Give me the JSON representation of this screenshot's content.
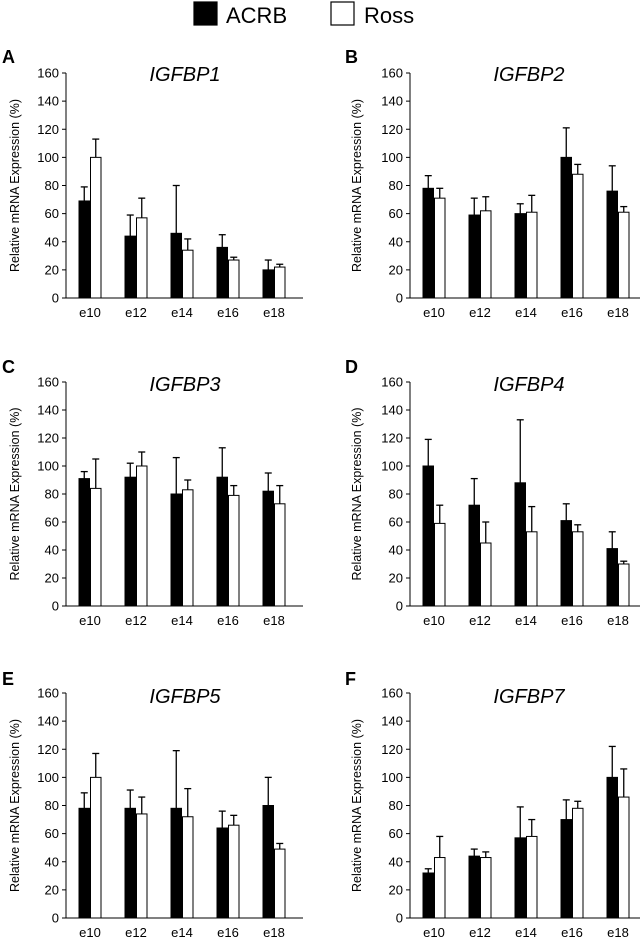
{
  "legend": [
    {
      "label": "ACRB",
      "color": "#000000"
    },
    {
      "label": "Ross",
      "color": "#ffffff"
    }
  ],
  "chart_data": [
    {
      "panel": "A",
      "type": "bar",
      "title": "IGFBP1",
      "ylabel": "Relative mRNA Expression (%)",
      "xlabel": "",
      "ylim": [
        0,
        160
      ],
      "yticks": [
        0,
        20,
        40,
        60,
        80,
        100,
        120,
        140,
        160
      ],
      "categories": [
        "e10",
        "e12",
        "e14",
        "e16",
        "e18"
      ],
      "series": [
        {
          "name": "ACRB",
          "values": [
            69,
            44,
            46,
            36,
            20
          ],
          "errors": [
            10,
            15,
            34,
            9,
            7
          ]
        },
        {
          "name": "Ross",
          "values": [
            100,
            57,
            34,
            27,
            22
          ],
          "errors": [
            13,
            14,
            8,
            2,
            2
          ]
        }
      ]
    },
    {
      "panel": "B",
      "type": "bar",
      "title": "IGFBP2",
      "ylabel": "Relative mRNA Expression (%)",
      "xlabel": "",
      "ylim": [
        0,
        160
      ],
      "yticks": [
        0,
        20,
        40,
        60,
        80,
        100,
        120,
        140,
        160
      ],
      "categories": [
        "e10",
        "e12",
        "e14",
        "e16",
        "e18"
      ],
      "series": [
        {
          "name": "ACRB",
          "values": [
            78,
            59,
            60,
            100,
            76
          ],
          "errors": [
            9,
            12,
            7,
            21,
            18
          ]
        },
        {
          "name": "Ross",
          "values": [
            71,
            62,
            61,
            88,
            61
          ],
          "errors": [
            7,
            10,
            12,
            7,
            4
          ]
        }
      ]
    },
    {
      "panel": "C",
      "type": "bar",
      "title": "IGFBP3",
      "ylabel": "Relative mRNA Expression (%)",
      "xlabel": "",
      "ylim": [
        0,
        160
      ],
      "yticks": [
        0,
        20,
        40,
        60,
        80,
        100,
        120,
        140,
        160
      ],
      "categories": [
        "e10",
        "e12",
        "e14",
        "e16",
        "e18"
      ],
      "series": [
        {
          "name": "ACRB",
          "values": [
            91,
            92,
            80,
            92,
            82
          ],
          "errors": [
            5,
            10,
            26,
            21,
            13
          ]
        },
        {
          "name": "Ross",
          "values": [
            84,
            100,
            83,
            79,
            73
          ],
          "errors": [
            21,
            10,
            7,
            7,
            13
          ]
        }
      ]
    },
    {
      "panel": "D",
      "type": "bar",
      "title": "IGFBP4",
      "ylabel": "Relative mRNA Expression (%)",
      "xlabel": "",
      "ylim": [
        0,
        160
      ],
      "yticks": [
        0,
        20,
        40,
        60,
        80,
        100,
        120,
        140,
        160
      ],
      "categories": [
        "e10",
        "e12",
        "e14",
        "e16",
        "e18"
      ],
      "series": [
        {
          "name": "ACRB",
          "values": [
            100,
            72,
            88,
            61,
            41
          ],
          "errors": [
            19,
            19,
            45,
            12,
            12
          ]
        },
        {
          "name": "Ross",
          "values": [
            59,
            45,
            53,
            53,
            30
          ],
          "errors": [
            13,
            15,
            18,
            5,
            2
          ]
        }
      ]
    },
    {
      "panel": "E",
      "type": "bar",
      "title": "IGFBP5",
      "ylabel": "Relative mRNA Expression (%)",
      "xlabel": "",
      "ylim": [
        0,
        160
      ],
      "yticks": [
        0,
        20,
        40,
        60,
        80,
        100,
        120,
        140,
        160
      ],
      "categories": [
        "e10",
        "e12",
        "e14",
        "e16",
        "e18"
      ],
      "series": [
        {
          "name": "ACRB",
          "values": [
            78,
            78,
            78,
            64,
            80
          ],
          "errors": [
            11,
            13,
            41,
            12,
            20
          ]
        },
        {
          "name": "Ross",
          "values": [
            100,
            74,
            72,
            66,
            49
          ],
          "errors": [
            17,
            12,
            20,
            7,
            4
          ]
        }
      ]
    },
    {
      "panel": "F",
      "type": "bar",
      "title": "IGFBP7",
      "ylabel": "Relative mRNA Expression (%)",
      "xlabel": "",
      "ylim": [
        0,
        160
      ],
      "yticks": [
        0,
        20,
        40,
        60,
        80,
        100,
        120,
        140,
        160
      ],
      "categories": [
        "e10",
        "e12",
        "e14",
        "e16",
        "e18"
      ],
      "series": [
        {
          "name": "ACRB",
          "values": [
            32,
            44,
            57,
            70,
            100
          ],
          "errors": [
            3,
            5,
            22,
            14,
            22
          ]
        },
        {
          "name": "Ross",
          "values": [
            43,
            43,
            58,
            78,
            86
          ],
          "errors": [
            15,
            4,
            12,
            5,
            20
          ]
        }
      ]
    }
  ]
}
